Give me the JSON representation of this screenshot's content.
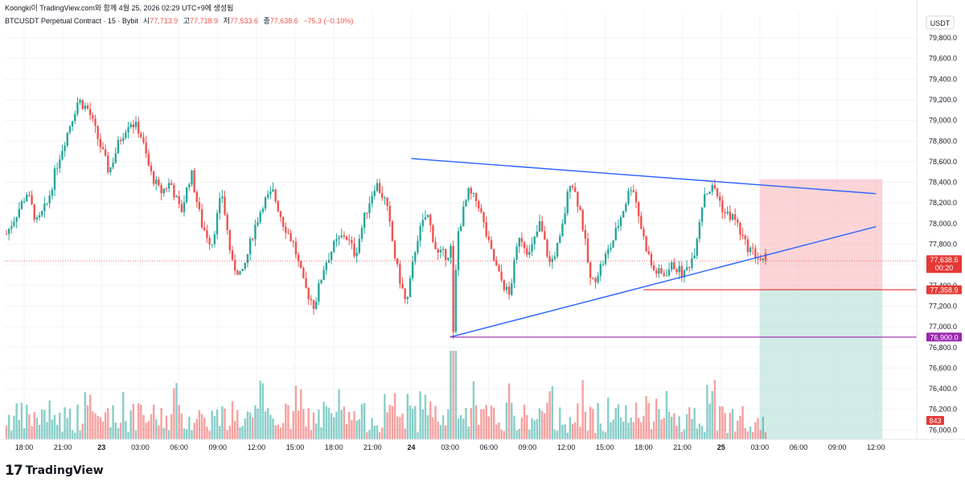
{
  "header": {
    "caption": "Koongki이 TradingView.com와 함께 4월 25, 2026 02:29 UTC+9에 생성됨"
  },
  "footer": {
    "logo_text": "TradingView",
    "logo_mark": "17"
  },
  "colors": {
    "up": "#26a69a",
    "down": "#ef5350",
    "trendline": "#2962ff",
    "stop": "#e03030",
    "target": "#9c27b0",
    "loss_zone": "#f7b7bd",
    "profit_zone": "#b2dfd5",
    "label_red": "#e53935",
    "label_purple": "#9c27b0"
  },
  "chart_data": {
    "type": "candlestick",
    "symbol_line": {
      "name": "BTCUSDT Perpetual Contract · 15 · Bybit",
      "o_label": "시",
      "o": "77,713.9",
      "h_label": "고",
      "h": "77,718.9",
      "l_label": "저",
      "l": "77,533.6",
      "c_label": "종",
      "c": "77,638.6",
      "change": "−75.3 (−0.10%)"
    },
    "currency": "USDT",
    "ylim": [
      75900,
      79980
    ],
    "y_ticks": [
      "79,800.0",
      "79,600.0",
      "79,400.0",
      "79,200.0",
      "79,000.0",
      "78,800.0",
      "78,600.0",
      "78,400.0",
      "78,200.0",
      "78,000.0",
      "77,800.0",
      "77,600.0",
      "77,400.0",
      "77,200.0",
      "77,000.0",
      "76,800.0",
      "76,600.0",
      "76,400.0",
      "76,200.0",
      "76,000.0"
    ],
    "x_ticks": [
      "18:00",
      "21:00",
      "23",
      "03:00",
      "06:00",
      "09:00",
      "12:00",
      "15:00",
      "18:00",
      "21:00",
      "24",
      "03:00",
      "06:00",
      "09:00",
      "12:00",
      "15:00",
      "18:00",
      "21:00",
      "25",
      "03:00",
      "06:00",
      "09:00",
      "12:00"
    ],
    "bold_ticks": [
      "23",
      "24",
      "25"
    ],
    "price_points": [
      77900,
      78100,
      78300,
      78000,
      78200,
      78600,
      78900,
      79200,
      79100,
      78800,
      78500,
      78800,
      79000,
      78900,
      78500,
      78300,
      78400,
      78100,
      78500,
      78000,
      77800,
      78300,
      77600,
      77500,
      77900,
      78200,
      78300,
      78000,
      77800,
      77400,
      77200,
      77600,
      77800,
      77900,
      77700,
      78100,
      78400,
      78200,
      77600,
      77200,
      77850,
      78100,
      77700,
      77700,
      77900,
      78300,
      78200,
      77800,
      77500,
      77300,
      77900,
      77700,
      78000,
      77600,
      77850,
      78450,
      78100,
      77400,
      77600,
      77800,
      78100,
      78400,
      77900,
      77550,
      77500,
      77600,
      77500,
      77700,
      78300,
      78350,
      78100,
      78050,
      77800,
      77700,
      77600
    ],
    "candles_count": 300,
    "last_price": "77,638.6",
    "countdown": "00:20",
    "stop_level": 77358.9,
    "stop_label": "77,358.9",
    "target_level": 76900,
    "target_label": "76,900.0",
    "entry_level": 77638.6,
    "zone_top": 78430,
    "trend_upper": [
      {
        "t": "24 00:00",
        "y": 78630
      },
      {
        "t": "25 12:00",
        "y": 78290
      }
    ],
    "trend_lower": [
      {
        "t": "24 03:00",
        "y": 76900
      },
      {
        "t": "25 12:00",
        "y": 77970
      }
    ],
    "stop_line_from": "24 18:00",
    "target_line_from": "24 03:00",
    "zone_from": "25 03:00",
    "zone_to": "25 12:30",
    "volume_label": "843"
  }
}
